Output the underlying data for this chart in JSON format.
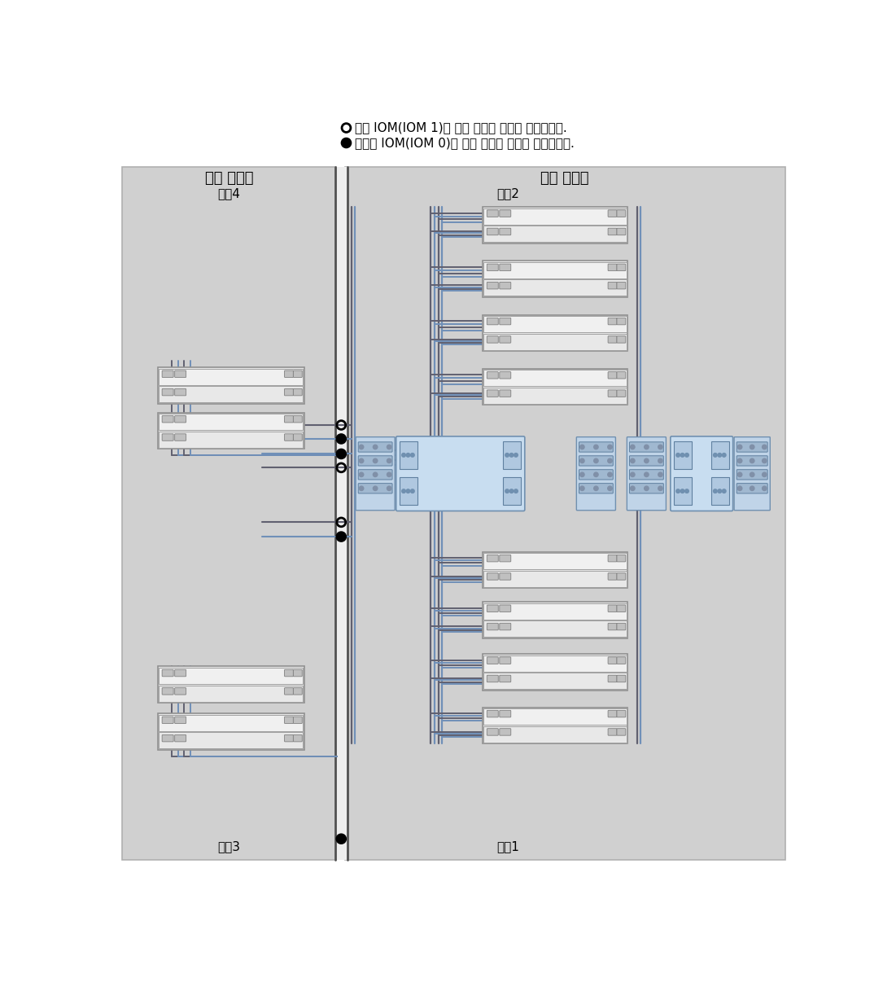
{
  "bg_color": "#d0d0d0",
  "line_dark": "#606070",
  "line_blue": "#7090b8",
  "line_mid": "#909090",
  "blue_light": "#aac8e8",
  "cabinet_left_label": "확장 캐비닛",
  "cabinet_right_label": "기본 캐비닛",
  "chain2_label": "체인2",
  "chain4_label": "체인4",
  "chain1_label": "체인1",
  "chain3_label": "체인3",
  "legend_text1": "위쪽 IOM(IOM 1)에 대한 케이블 연결을 나타냅니다.",
  "legend_text2": "아래쪽 IOM(IOM 0)에 대한 케이블 연결을 나타냅니다."
}
